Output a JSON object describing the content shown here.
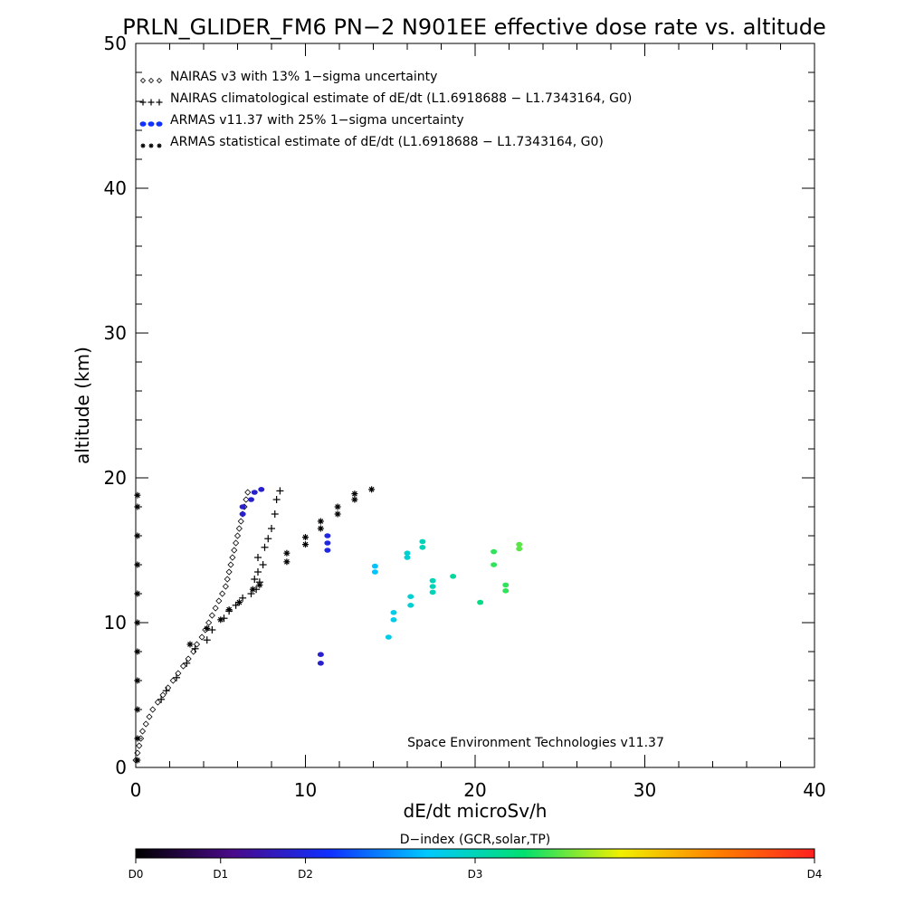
{
  "chart_data": {
    "type": "scatter",
    "title": "PRLN_GLIDER_FM6 PN−2 N901EE effective dose rate vs. altitude",
    "xlabel": "dE/dt microSv/h",
    "ylabel": "altitude (km)",
    "xlim": [
      0,
      40
    ],
    "ylim": [
      0,
      50
    ],
    "x_ticks": [
      "0",
      "10",
      "20",
      "30",
      "40"
    ],
    "y_ticks": [
      "0",
      "10",
      "20",
      "30",
      "40",
      "50"
    ],
    "grid": false,
    "legend_position": "top-left",
    "annotation": "Space Environment Technologies v11.37",
    "colorbar": {
      "label": "D−index (GCR,solar,TP)",
      "ticks": [
        {
          "label": "D0",
          "frac": 0.0
        },
        {
          "label": "D1",
          "frac": 0.125
        },
        {
          "label": "D2",
          "frac": 0.25
        },
        {
          "label": "D3",
          "frac": 0.5
        },
        {
          "label": "D4",
          "frac": 1.0
        }
      ],
      "colors": [
        "#000000",
        "#4a0a8a",
        "#1030ff",
        "#00c8ff",
        "#00e070",
        "#f0f000",
        "#ff8000",
        "#ff2020"
      ]
    },
    "series": [
      {
        "name": "NAIRAS v3 with 13% 1−sigma uncertainty",
        "marker": "diamond",
        "color": "#000000",
        "points": [
          [
            0.0,
            0.5
          ],
          [
            0.1,
            1.0
          ],
          [
            0.2,
            1.5
          ],
          [
            0.3,
            2.0
          ],
          [
            0.4,
            2.5
          ],
          [
            0.6,
            3.0
          ],
          [
            0.8,
            3.5
          ],
          [
            1.0,
            4.0
          ],
          [
            1.3,
            4.5
          ],
          [
            1.6,
            5.0
          ],
          [
            1.9,
            5.5
          ],
          [
            2.2,
            6.0
          ],
          [
            2.5,
            6.5
          ],
          [
            2.8,
            7.0
          ],
          [
            3.1,
            7.5
          ],
          [
            3.4,
            8.0
          ],
          [
            3.6,
            8.5
          ],
          [
            3.9,
            9.0
          ],
          [
            4.1,
            9.5
          ],
          [
            4.3,
            10.0
          ],
          [
            4.5,
            10.5
          ],
          [
            4.7,
            11.0
          ],
          [
            4.9,
            11.5
          ],
          [
            5.1,
            12.0
          ],
          [
            5.3,
            12.5
          ],
          [
            5.4,
            13.0
          ],
          [
            5.5,
            13.5
          ],
          [
            5.6,
            14.0
          ],
          [
            5.7,
            14.5
          ],
          [
            5.8,
            15.0
          ],
          [
            5.9,
            15.5
          ],
          [
            6.0,
            16.0
          ],
          [
            6.1,
            16.5
          ],
          [
            6.2,
            17.0
          ],
          [
            6.3,
            17.5
          ],
          [
            6.4,
            18.0
          ],
          [
            6.5,
            18.5
          ],
          [
            6.6,
            19.0
          ]
        ]
      },
      {
        "name": "NAIRAS climatological estimate of dE/dt (L1.6918688 − L1.7343164, G0)",
        "marker": "plus",
        "color": "#000000",
        "points": [
          [
            1.5,
            4.7
          ],
          [
            1.8,
            5.3
          ],
          [
            2.4,
            6.2
          ],
          [
            3.0,
            7.2
          ],
          [
            3.5,
            8.2
          ],
          [
            4.2,
            8.8
          ],
          [
            4.5,
            9.5
          ],
          [
            5.2,
            10.3
          ],
          [
            5.5,
            10.8
          ],
          [
            5.9,
            11.2
          ],
          [
            6.3,
            11.7
          ],
          [
            6.8,
            12.0
          ],
          [
            7.1,
            12.3
          ],
          [
            7.3,
            12.8
          ],
          [
            7.0,
            13.0
          ],
          [
            7.2,
            13.5
          ],
          [
            7.5,
            14.0
          ],
          [
            7.2,
            14.5
          ],
          [
            7.6,
            15.2
          ],
          [
            7.8,
            15.8
          ],
          [
            8.0,
            16.5
          ],
          [
            8.2,
            17.5
          ],
          [
            8.3,
            18.5
          ],
          [
            8.5,
            19.1
          ]
        ]
      },
      {
        "name": "ARMAS v11.37 with 25% 1−sigma uncertainty",
        "marker": "dot",
        "color": "#1030ff",
        "points": [
          [
            10.9,
            7.2,
            0.9
          ],
          [
            10.9,
            7.8,
            0.9
          ],
          [
            6.3,
            17.5,
            0.9
          ],
          [
            6.3,
            18.0,
            0.9
          ],
          [
            6.8,
            18.5,
            0.9
          ],
          [
            7.0,
            19.0,
            0.9
          ],
          [
            7.4,
            19.2,
            0.9
          ],
          [
            11.3,
            15.0,
            1.0
          ],
          [
            11.3,
            15.5,
            1.0
          ],
          [
            11.3,
            16.0,
            1.0
          ],
          [
            14.1,
            13.5,
            1.7
          ],
          [
            14.1,
            13.9,
            1.7
          ],
          [
            14.9,
            9.0,
            1.8
          ],
          [
            15.2,
            10.2,
            1.8
          ],
          [
            15.2,
            10.7,
            1.8
          ],
          [
            16.0,
            14.5,
            1.9
          ],
          [
            16.0,
            14.8,
            1.9
          ],
          [
            16.2,
            11.2,
            1.9
          ],
          [
            16.2,
            11.8,
            1.9
          ],
          [
            16.9,
            15.2,
            2.0
          ],
          [
            16.9,
            15.6,
            2.0
          ],
          [
            17.5,
            12.1,
            2.0
          ],
          [
            17.5,
            12.5,
            2.0
          ],
          [
            17.5,
            12.9,
            2.0
          ],
          [
            18.7,
            13.2,
            2.1
          ],
          [
            20.3,
            11.4,
            2.2
          ],
          [
            21.1,
            14.0,
            2.4
          ],
          [
            21.1,
            14.9,
            2.4
          ],
          [
            21.8,
            12.2,
            2.4
          ],
          [
            21.8,
            12.6,
            2.4
          ],
          [
            22.6,
            15.1,
            2.5
          ],
          [
            22.6,
            15.4,
            2.5
          ]
        ]
      },
      {
        "name": "ARMAS statistical estimate of dE/dt (L1.6918688 − L1.7343164, G0)",
        "marker": "asterisk",
        "color": "#000000",
        "points": [
          [
            0.1,
            0.5
          ],
          [
            0.1,
            2.0
          ],
          [
            0.1,
            4.0
          ],
          [
            0.1,
            6.0
          ],
          [
            0.1,
            8.0
          ],
          [
            0.1,
            10.0
          ],
          [
            0.1,
            12.0
          ],
          [
            0.1,
            14.0
          ],
          [
            0.1,
            16.0
          ],
          [
            0.1,
            18.0
          ],
          [
            0.1,
            18.8
          ],
          [
            3.2,
            8.5
          ],
          [
            4.2,
            9.6
          ],
          [
            5.0,
            10.2
          ],
          [
            5.5,
            10.9
          ],
          [
            6.1,
            11.4
          ],
          [
            6.9,
            12.3
          ],
          [
            7.3,
            12.6
          ],
          [
            8.9,
            14.2
          ],
          [
            8.9,
            14.8
          ],
          [
            10.0,
            15.4
          ],
          [
            10.0,
            15.9
          ],
          [
            10.9,
            16.5
          ],
          [
            10.9,
            17.0
          ],
          [
            11.9,
            17.5
          ],
          [
            11.9,
            18.0
          ],
          [
            12.9,
            18.5
          ],
          [
            12.9,
            18.9
          ],
          [
            13.9,
            19.2
          ]
        ]
      }
    ]
  }
}
